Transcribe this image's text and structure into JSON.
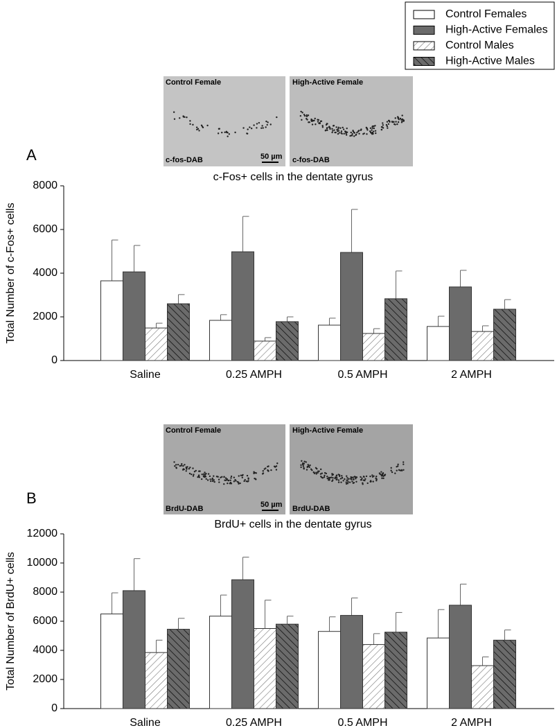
{
  "chart_data": [
    {
      "type": "bar",
      "panel": "A",
      "title": "c-Fos+ cells in the dentate gyrus",
      "ylabel": "Total Number of c-Fos+ cells",
      "categories": [
        "Saline",
        "0.25 AMPH",
        "0.5 AMPH",
        "2 AMPH"
      ],
      "ylim": [
        0,
        8000
      ],
      "yticks": [
        0,
        2000,
        4000,
        6000,
        8000
      ],
      "grid": false,
      "series": [
        {
          "name": "Control Females",
          "color": "#ffffff",
          "hatch": false,
          "values": [
            3650,
            1840,
            1620,
            1560
          ],
          "errors": [
            1870,
            260,
            320,
            470
          ]
        },
        {
          "name": "High-Active Females",
          "color": "#6b6b6b",
          "hatch": false,
          "values": [
            4060,
            4980,
            4950,
            3370
          ],
          "errors": [
            1210,
            1620,
            1970,
            760
          ]
        },
        {
          "name": "Control Males",
          "color": "#ffffff",
          "hatch": true,
          "values": [
            1490,
            890,
            1240,
            1330
          ],
          "errors": [
            220,
            160,
            220,
            260
          ]
        },
        {
          "name": "High-Active Males",
          "color": "#6b6b6b",
          "hatch": true,
          "values": [
            2600,
            1780,
            2830,
            2350
          ],
          "errors": [
            420,
            220,
            1270,
            440
          ]
        }
      ]
    },
    {
      "type": "bar",
      "panel": "B",
      "title": "BrdU+ cells in the dentate gyrus",
      "ylabel": "Total Number of BrdU+ cells",
      "categories": [
        "Saline",
        "0.25 AMPH",
        "0.5 AMPH",
        "2 AMPH"
      ],
      "ylim": [
        0,
        12000
      ],
      "yticks": [
        0,
        2000,
        4000,
        6000,
        8000,
        10000,
        12000
      ],
      "grid": false,
      "series": [
        {
          "color": "#ffffff",
          "hatch": false,
          "values": [
            6500,
            6350,
            5300,
            4850
          ],
          "errors": [
            1450,
            1450,
            1000,
            1950
          ]
        },
        {
          "color": "#6b6b6b",
          "hatch": false,
          "values": [
            8100,
            8850,
            6400,
            7100
          ],
          "errors": [
            2200,
            1550,
            1200,
            1450
          ]
        },
        {
          "color": "#ffffff",
          "hatch": true,
          "values": [
            3850,
            5500,
            4400,
            2950
          ],
          "errors": [
            850,
            1950,
            750,
            600
          ]
        },
        {
          "color": "#6b6b6b",
          "hatch": true,
          "values": [
            5450,
            5800,
            5250,
            4700
          ],
          "errors": [
            750,
            550,
            1350,
            700
          ]
        }
      ]
    }
  ],
  "micrographs": [
    {
      "left": {
        "label": "Control Female",
        "stain": "c-fos-DAB",
        "scale": "50 µm"
      },
      "right": {
        "label": "High-Active Female",
        "stain": "c-fos-DAB"
      }
    },
    {
      "left": {
        "label": "Control Female",
        "stain": "BrdU-DAB",
        "scale": "50 µm"
      },
      "right": {
        "label": "High-Active Female",
        "stain": "BrdU-DAB"
      }
    }
  ]
}
